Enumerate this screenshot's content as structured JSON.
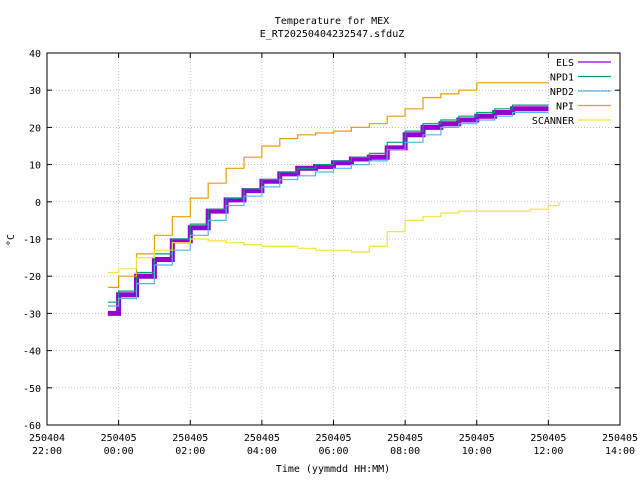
{
  "chart_data": {
    "type": "line",
    "title": "Temperature for MEX",
    "subtitle": "E_RT20250404232547.sfduZ",
    "xlabel": "Time (yymmdd HH:MM)",
    "ylabel": "°C",
    "x_domain_hours": [
      -2,
      14
    ],
    "ylim": [
      -60,
      40
    ],
    "y_ticks": [
      40,
      30,
      20,
      10,
      0,
      -10,
      -20,
      -30,
      -40,
      -50,
      -60
    ],
    "x_ticks": [
      {
        "h": -2,
        "date": "250404",
        "time": "22:00"
      },
      {
        "h": 0,
        "date": "250405",
        "time": "00:00"
      },
      {
        "h": 2,
        "date": "250405",
        "time": "02:00"
      },
      {
        "h": 4,
        "date": "250405",
        "time": "04:00"
      },
      {
        "h": 6,
        "date": "250405",
        "time": "06:00"
      },
      {
        "h": 8,
        "date": "250405",
        "time": "08:00"
      },
      {
        "h": 10,
        "date": "250405",
        "time": "10:00"
      },
      {
        "h": 12,
        "date": "250405",
        "time": "12:00"
      },
      {
        "h": 14,
        "date": "250405",
        "time": "14:00"
      }
    ],
    "grid": true,
    "legend_position": "top-right",
    "series": [
      {
        "name": "ELS",
        "color": "#9400d3",
        "width": 5,
        "points": [
          [
            -0.3,
            -30
          ],
          [
            0,
            -25
          ],
          [
            0.5,
            -20
          ],
          [
            1,
            -15.5
          ],
          [
            1.5,
            -10.5
          ],
          [
            2,
            -7
          ],
          [
            2.5,
            -2.5
          ],
          [
            3,
            0.5
          ],
          [
            3.5,
            3
          ],
          [
            4,
            5.5
          ],
          [
            4.5,
            7.5
          ],
          [
            5,
            9
          ],
          [
            5.5,
            9.5
          ],
          [
            6,
            10.5
          ],
          [
            6.5,
            11.5
          ],
          [
            7,
            12
          ],
          [
            7.5,
            14.5
          ],
          [
            8,
            18
          ],
          [
            8.5,
            20
          ],
          [
            9,
            21
          ],
          [
            9.5,
            22
          ],
          [
            10,
            23
          ],
          [
            10.5,
            24
          ],
          [
            11,
            25
          ],
          [
            12,
            25
          ]
        ]
      },
      {
        "name": "NPD1",
        "color": "#009e73",
        "width": 1.2,
        "points": [
          [
            -0.3,
            -27
          ],
          [
            0,
            -24
          ],
          [
            0.5,
            -19
          ],
          [
            1,
            -14
          ],
          [
            1.5,
            -10
          ],
          [
            2,
            -6
          ],
          [
            2.5,
            -2
          ],
          [
            3,
            1
          ],
          [
            3.5,
            3.5
          ],
          [
            4,
            6
          ],
          [
            4.5,
            8
          ],
          [
            5,
            9
          ],
          [
            5.5,
            10
          ],
          [
            6,
            11
          ],
          [
            6.5,
            12
          ],
          [
            7,
            13
          ],
          [
            7.5,
            16
          ],
          [
            8,
            19
          ],
          [
            8.5,
            21
          ],
          [
            9,
            22
          ],
          [
            9.5,
            23
          ],
          [
            10,
            24
          ],
          [
            10.5,
            25
          ],
          [
            11,
            26
          ],
          [
            12,
            26
          ]
        ]
      },
      {
        "name": "NPD2",
        "color": "#56b4e9",
        "width": 1.2,
        "points": [
          [
            -0.3,
            -28
          ],
          [
            0,
            -26
          ],
          [
            0.5,
            -22
          ],
          [
            1,
            -17
          ],
          [
            1.5,
            -13
          ],
          [
            2,
            -9
          ],
          [
            2.5,
            -5
          ],
          [
            3,
            -1
          ],
          [
            3.5,
            1.5
          ],
          [
            4,
            4
          ],
          [
            4.5,
            6
          ],
          [
            5,
            7
          ],
          [
            5.5,
            8
          ],
          [
            6,
            9
          ],
          [
            6.5,
            10
          ],
          [
            7,
            11
          ],
          [
            7.5,
            14
          ],
          [
            8,
            16
          ],
          [
            8.5,
            18
          ],
          [
            9,
            20
          ],
          [
            9.5,
            21
          ],
          [
            10,
            22
          ],
          [
            10.5,
            23
          ],
          [
            11,
            24
          ],
          [
            12,
            24
          ]
        ]
      },
      {
        "name": "NPI",
        "color": "#e69f00",
        "width": 1.2,
        "points": [
          [
            -0.3,
            -23
          ],
          [
            0,
            -20
          ],
          [
            0.5,
            -14
          ],
          [
            1,
            -9
          ],
          [
            1.5,
            -4
          ],
          [
            2,
            1
          ],
          [
            2.5,
            5
          ],
          [
            3,
            9
          ],
          [
            3.5,
            12
          ],
          [
            4,
            15
          ],
          [
            4.5,
            17
          ],
          [
            5,
            18
          ],
          [
            5.5,
            18.5
          ],
          [
            6,
            19
          ],
          [
            6.5,
            20
          ],
          [
            7,
            21
          ],
          [
            7.5,
            23
          ],
          [
            8,
            25
          ],
          [
            8.5,
            28
          ],
          [
            9,
            29
          ],
          [
            9.5,
            30
          ],
          [
            10,
            32
          ],
          [
            10.5,
            32
          ],
          [
            11,
            32
          ],
          [
            12,
            32
          ]
        ]
      },
      {
        "name": "SCANNER",
        "color": "#f0e442",
        "width": 1.2,
        "points": [
          [
            -0.3,
            -19
          ],
          [
            0,
            -18
          ],
          [
            0.5,
            -15
          ],
          [
            1,
            -13
          ],
          [
            1.5,
            -11
          ],
          [
            2,
            -10
          ],
          [
            2.5,
            -10.5
          ],
          [
            3,
            -11
          ],
          [
            3.5,
            -11.5
          ],
          [
            4,
            -12
          ],
          [
            4.5,
            -12
          ],
          [
            5,
            -12.5
          ],
          [
            5.5,
            -13
          ],
          [
            6,
            -13
          ],
          [
            6.5,
            -13.5
          ],
          [
            7,
            -12
          ],
          [
            7.5,
            -8
          ],
          [
            8,
            -5
          ],
          [
            8.5,
            -4
          ],
          [
            9,
            -3
          ],
          [
            9.5,
            -2.5
          ],
          [
            10,
            -2.5
          ],
          [
            10.5,
            -2.5
          ],
          [
            11,
            -2.5
          ],
          [
            11.5,
            -2
          ],
          [
            12,
            -1
          ],
          [
            12.3,
            0
          ]
        ]
      }
    ]
  }
}
